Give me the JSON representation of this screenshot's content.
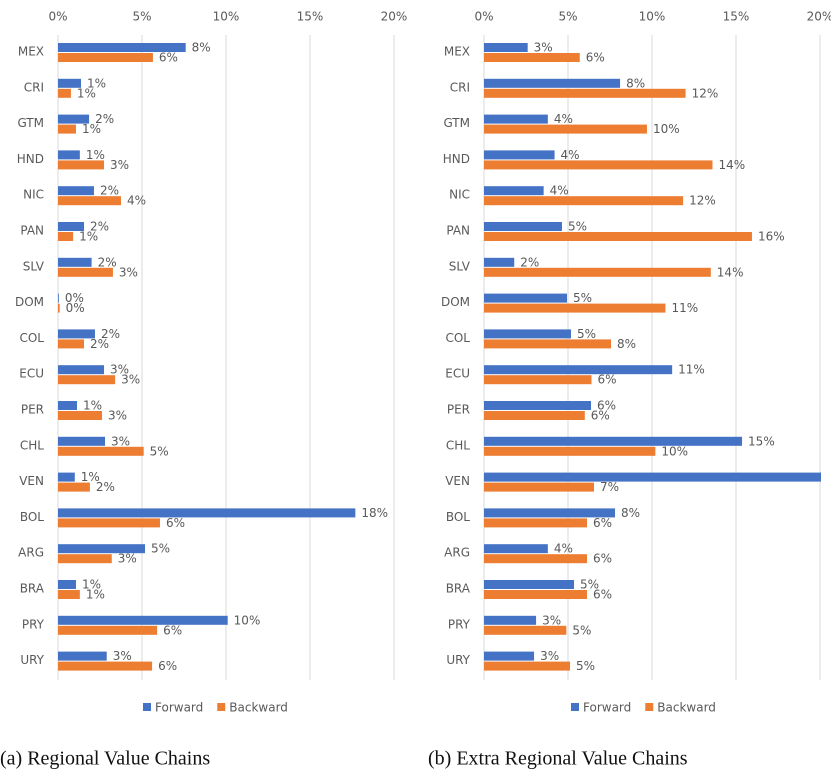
{
  "chart_data": [
    {
      "type": "bar",
      "orientation": "horizontal",
      "title": "(a) Regional Value Chains",
      "categories": [
        "MEX",
        "CRI",
        "GTM",
        "HND",
        "NIC",
        "PAN",
        "SLV",
        "DOM",
        "COL",
        "ECU",
        "PER",
        "CHL",
        "VEN",
        "BOL",
        "ARG",
        "BRA",
        "PRY",
        "URY"
      ],
      "series": [
        {
          "name": "Forward",
          "color": "#4472c4",
          "values": [
            7.6,
            1.37,
            1.85,
            1.3,
            2.14,
            1.55,
            2.0,
            0.05,
            2.2,
            2.74,
            1.13,
            2.8,
            1.0,
            17.7,
            5.18,
            1.07,
            10.1,
            2.9
          ],
          "value_labels": [
            "8%",
            "1%",
            "2%",
            "1%",
            "2%",
            "2%",
            "2%",
            "0%",
            "2%",
            "3%",
            "1%",
            "3%",
            "1%",
            "18%",
            "5%",
            "1%",
            "10%",
            "3%"
          ]
        },
        {
          "name": "Backward",
          "color": "#ed7d31",
          "values": [
            5.65,
            0.77,
            1.07,
            2.74,
            3.75,
            0.9,
            3.27,
            0.1,
            1.55,
            3.4,
            2.62,
            5.1,
            1.9,
            6.07,
            3.2,
            1.3,
            5.9,
            5.6
          ],
          "value_labels": [
            "6%",
            "1%",
            "1%",
            "3%",
            "4%",
            "1%",
            "3%",
            "0%",
            "2%",
            "3%",
            "3%",
            "5%",
            "2%",
            "6%",
            "3%",
            "1%",
            "6%",
            "6%"
          ]
        }
      ],
      "xlim": [
        0,
        20
      ],
      "xticks": [
        {
          "value": 0,
          "label": "0%"
        },
        {
          "value": 5,
          "label": "5%"
        },
        {
          "value": 10,
          "label": "10%"
        },
        {
          "value": 15,
          "label": "15%"
        },
        {
          "value": 20,
          "label": "20%"
        }
      ],
      "grid": true,
      "legend": "bottom"
    },
    {
      "type": "bar",
      "orientation": "horizontal",
      "title": "(b) Extra Regional Value Chains",
      "categories": [
        "MEX",
        "CRI",
        "GTM",
        "HND",
        "NIC",
        "PAN",
        "SLV",
        "DOM",
        "COL",
        "ECU",
        "PER",
        "CHL",
        "VEN",
        "BOL",
        "ARG",
        "BRA",
        "PRY",
        "URY"
      ],
      "series": [
        {
          "name": "Forward",
          "color": "#4472c4",
          "values": [
            2.6,
            8.1,
            3.8,
            4.2,
            3.55,
            4.64,
            1.8,
            4.94,
            5.18,
            11.2,
            6.37,
            15.36,
            21,
            7.8,
            3.8,
            5.36,
            3.1,
            2.98
          ],
          "value_labels": [
            "3%",
            "8%",
            "4%",
            "4%",
            "4%",
            "5%",
            "2%",
            "5%",
            "5%",
            "11%",
            "6%",
            "15%",
            null,
            "8%",
            "4%",
            "5%",
            "3%",
            "3%"
          ]
        },
        {
          "name": "Backward",
          "color": "#ed7d31",
          "values": [
            5.7,
            12.0,
            9.7,
            13.6,
            11.85,
            15.95,
            13.5,
            10.8,
            7.56,
            6.4,
            6.0,
            10.2,
            6.55,
            6.13,
            6.13,
            6.13,
            4.9,
            5.12
          ],
          "value_labels": [
            "6%",
            "12%",
            "10%",
            "14%",
            "12%",
            "16%",
            "14%",
            "11%",
            "8%",
            "6%",
            "6%",
            "10%",
            "7%",
            "6%",
            "6%",
            "6%",
            "5%",
            "5%"
          ]
        }
      ],
      "xlim": [
        0,
        20
      ],
      "xticks": [
        {
          "value": 0,
          "label": "0%"
        },
        {
          "value": 5,
          "label": "5%"
        },
        {
          "value": 10,
          "label": "10%"
        },
        {
          "value": 15,
          "label": "15%"
        },
        {
          "value": 20,
          "label": "20%"
        }
      ],
      "grid": true,
      "legend": "bottom"
    }
  ]
}
